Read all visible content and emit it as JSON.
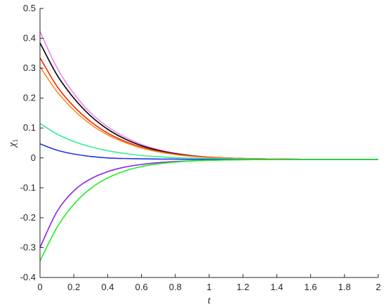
{
  "chart_data": {
    "type": "line",
    "xlabel": "t",
    "ylabel_main": "χ",
    "ylabel_sub": "1",
    "xlim": [
      0,
      2
    ],
    "ylim": [
      -0.4,
      0.5
    ],
    "xticks": [
      0,
      0.2,
      0.4,
      0.6,
      0.8,
      1,
      1.2,
      1.4,
      1.6,
      1.8,
      2
    ],
    "xtick_labels": [
      "0",
      "0.2",
      "0.4",
      "0.6",
      "0.8",
      "1",
      "1.2",
      "1.4",
      "1.6",
      "1.8",
      "2"
    ],
    "yticks": [
      -0.4,
      -0.3,
      -0.2,
      -0.1,
      0,
      0.1,
      0.2,
      0.3,
      0.4,
      0.5
    ],
    "ytick_labels": [
      "-0.4",
      "-0.3",
      "-0.2",
      "-0.1",
      "0",
      "0.1",
      "0.2",
      "0.3",
      "0.4",
      "0.5"
    ],
    "grid": false,
    "series": [
      {
        "color": "#ee82ee",
        "x": [
          0,
          0.1,
          0.2,
          0.3,
          0.4,
          0.5,
          0.6,
          0.7,
          0.8,
          0.9,
          1.0,
          1.2,
          1.4,
          1.6,
          1.8,
          2.0
        ],
        "y": [
          0.423,
          0.302,
          0.215,
          0.15,
          0.104,
          0.07,
          0.045,
          0.028,
          0.016,
          0.008,
          0.003,
          -0.002,
          -0.004,
          -0.005,
          -0.005,
          -0.005
        ]
      },
      {
        "color": "#000000",
        "x": [
          0,
          0.1,
          0.2,
          0.3,
          0.4,
          0.5,
          0.6,
          0.7,
          0.8,
          0.9,
          1.0,
          1.2,
          1.4,
          1.6,
          1.8,
          2.0
        ],
        "y": [
          0.385,
          0.278,
          0.2,
          0.14,
          0.096,
          0.064,
          0.041,
          0.025,
          0.014,
          0.007,
          0.002,
          -0.002,
          -0.004,
          -0.005,
          -0.005,
          -0.005
        ]
      },
      {
        "color": "#ff2200",
        "x": [
          0,
          0.1,
          0.2,
          0.3,
          0.4,
          0.5,
          0.6,
          0.7,
          0.8,
          0.9,
          1.0,
          1.2,
          1.4,
          1.6,
          1.8,
          2.0
        ],
        "y": [
          0.335,
          0.24,
          0.172,
          0.121,
          0.083,
          0.056,
          0.036,
          0.022,
          0.012,
          0.006,
          0.002,
          -0.002,
          -0.004,
          -0.005,
          -0.005,
          -0.005
        ]
      },
      {
        "color": "#f4901e",
        "x": [
          0,
          0.1,
          0.2,
          0.3,
          0.4,
          0.5,
          0.6,
          0.7,
          0.8,
          0.9,
          1.0,
          1.2,
          1.4,
          1.6,
          1.8,
          2.0
        ],
        "y": [
          0.305,
          0.222,
          0.16,
          0.112,
          0.077,
          0.052,
          0.033,
          0.02,
          0.011,
          0.005,
          0.001,
          -0.002,
          -0.004,
          -0.005,
          -0.005,
          -0.005
        ]
      },
      {
        "color": "#33ee99",
        "x": [
          0,
          0.1,
          0.2,
          0.3,
          0.4,
          0.5,
          0.6,
          0.7,
          0.8,
          0.9,
          1.0,
          1.2,
          1.4,
          1.6,
          1.8,
          2.0
        ],
        "y": [
          0.115,
          0.08,
          0.055,
          0.037,
          0.024,
          0.015,
          0.008,
          0.004,
          0.001,
          -0.001,
          -0.002,
          -0.004,
          -0.005,
          -0.005,
          -0.005,
          -0.005
        ]
      },
      {
        "color": "#2233dd",
        "x": [
          0,
          0.1,
          0.2,
          0.3,
          0.4,
          0.5,
          0.6,
          0.7,
          0.8,
          0.9,
          1.0,
          1.2,
          1.4,
          1.6,
          1.8,
          2.0
        ],
        "y": [
          0.047,
          0.026,
          0.013,
          0.005,
          0.0,
          -0.002,
          -0.003,
          -0.004,
          -0.004,
          -0.005,
          -0.005,
          -0.005,
          -0.005,
          -0.005,
          -0.005,
          -0.005
        ]
      },
      {
        "color": "#8822ee",
        "x": [
          0,
          0.1,
          0.2,
          0.3,
          0.4,
          0.5,
          0.6,
          0.7,
          0.8,
          0.9,
          1.0,
          1.2,
          1.4,
          1.6,
          1.8,
          2.0
        ],
        "y": [
          -0.3,
          -0.18,
          -0.11,
          -0.07,
          -0.046,
          -0.031,
          -0.022,
          -0.016,
          -0.012,
          -0.01,
          -0.008,
          -0.006,
          -0.005,
          -0.005,
          -0.005,
          -0.005
        ]
      },
      {
        "color": "#22ee22",
        "x": [
          0,
          0.1,
          0.2,
          0.3,
          0.4,
          0.5,
          0.6,
          0.7,
          0.8,
          0.9,
          1.0,
          1.2,
          1.4,
          1.6,
          1.8,
          2.0
        ],
        "y": [
          -0.345,
          -0.233,
          -0.155,
          -0.102,
          -0.067,
          -0.044,
          -0.029,
          -0.02,
          -0.014,
          -0.01,
          -0.008,
          -0.006,
          -0.005,
          -0.005,
          -0.005,
          -0.005
        ]
      }
    ]
  }
}
